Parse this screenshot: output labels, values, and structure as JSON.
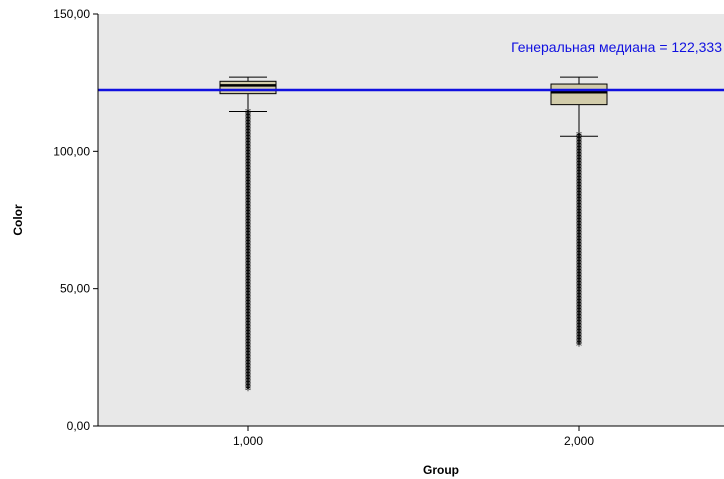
{
  "chart_data": {
    "type": "boxplot",
    "xlabel": "Group",
    "ylabel": "Color",
    "ylim": [
      0,
      150
    ],
    "y_ticks": [
      {
        "value": 0,
        "label": "0,00"
      },
      {
        "value": 50,
        "label": "50,00"
      },
      {
        "value": 100,
        "label": "100,00"
      },
      {
        "value": 150,
        "label": "150,00"
      }
    ],
    "categories": [
      "1,000",
      "2,000"
    ],
    "boxes": [
      {
        "category": "1,000",
        "whisker_low": 114.5,
        "q1": 121,
        "median": 124,
        "q3": 125.5,
        "whisker_high": 127,
        "outlier_low": 12.5,
        "outlier_high": 114
      },
      {
        "category": "2,000",
        "whisker_low": 105.5,
        "q1": 117,
        "median": 121.5,
        "q3": 124.5,
        "whisker_high": 127,
        "outlier_low": 29,
        "outlier_high": 105.5
      }
    ],
    "reference_line": {
      "value": 122.333,
      "label": "Генеральная медиана = 122,333",
      "color": "#1010e0"
    },
    "colors": {
      "plot_background": "#e8e8e8",
      "box_fill": "#d2ccaa",
      "box_stroke": "#000000",
      "outlier": "#000000"
    },
    "grid": false
  }
}
